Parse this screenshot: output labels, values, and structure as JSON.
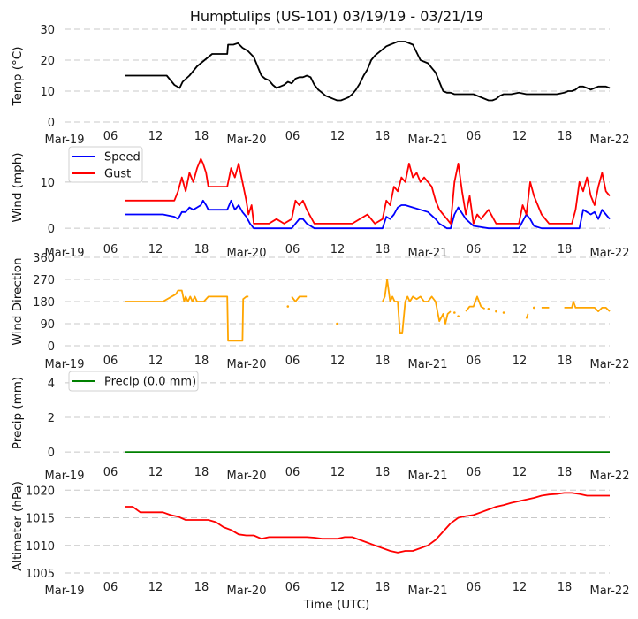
{
  "chart_data": [
    {
      "type": "line",
      "panel": "temp",
      "title": "Humptulips (US-101) 03/19/19 - 03/21/19",
      "xlabel": "",
      "ylabel": "Temp ($^\\circ$C)",
      "ylabel_display": "Temp (°C)",
      "ylim": [
        0,
        30
      ],
      "yticks": [
        0,
        10,
        20,
        30
      ],
      "ytick_labels": [
        "0",
        "10",
        "20",
        "30"
      ],
      "grid": true,
      "x_units": "hours since Mar-19 00:00 UTC",
      "xlim": [
        0,
        72
      ],
      "xticks": [
        0,
        6,
        12,
        18,
        24,
        30,
        36,
        42,
        48,
        54,
        60,
        66,
        72
      ],
      "xtick_labels": [
        "Mar-19",
        "06",
        "12",
        "18",
        "Mar-20",
        "06",
        "12",
        "18",
        "Mar-21",
        "06",
        "12",
        "18",
        "Mar-22"
      ],
      "series": [
        {
          "name": "Temp",
          "color": "#000000",
          "x": [
            8,
            13.5,
            14.5,
            15.2,
            15.6,
            16.5,
            17.5,
            18.5,
            19.5,
            21.5,
            21.6,
            22.3,
            22.9,
            23.5,
            24.2,
            25,
            25.5,
            26,
            26.5,
            27,
            27.5,
            28,
            28.5,
            29,
            29.5,
            30,
            30.5,
            31,
            31.5,
            32,
            32.5,
            33,
            33.5,
            34,
            34.5,
            35,
            35.5,
            36,
            36.5,
            37,
            37.5,
            38,
            38.5,
            39,
            39.5,
            40,
            40.5,
            41,
            41.5,
            42,
            42.5,
            43,
            43.5,
            44,
            45,
            46,
            47,
            48,
            48.5,
            49,
            49.5,
            50,
            50.5,
            51,
            51.5,
            52,
            53,
            54,
            55,
            56,
            56.5,
            57,
            57.5,
            58,
            59,
            60,
            61,
            62,
            63,
            64,
            65,
            66,
            66.5,
            67,
            67.5,
            68,
            68.5,
            69,
            69.5,
            70,
            70.5,
            71,
            71.5,
            72
          ],
          "y": [
            15,
            15,
            12,
            11,
            13,
            15,
            18,
            20,
            22,
            22,
            25,
            25,
            25.5,
            24,
            23,
            21,
            18,
            15,
            14,
            13.5,
            12,
            11,
            11.5,
            12,
            13,
            12.5,
            14,
            14.5,
            14.5,
            15,
            14.5,
            12,
            10.5,
            9.5,
            8.5,
            8,
            7.5,
            7,
            7,
            7.5,
            8,
            9,
            10.5,
            12.5,
            15,
            17,
            20,
            21.5,
            22.5,
            23.5,
            24.5,
            25,
            25.5,
            26,
            26,
            25,
            20,
            19,
            17.5,
            16,
            13,
            10,
            9.5,
            9.5,
            9,
            9,
            9,
            9,
            8,
            7,
            7,
            7.5,
            8.5,
            9,
            9,
            9.5,
            9,
            9,
            9,
            9,
            9,
            9.5,
            10,
            10,
            10.5,
            11.5,
            11.5,
            11,
            10.5,
            11,
            11.5,
            11.5,
            11.5,
            11
          ]
        }
      ]
    },
    {
      "type": "line",
      "panel": "wind",
      "ylabel": "Wind (mph)",
      "ylim": [
        -1.5,
        18
      ],
      "yticks": [
        0,
        10
      ],
      "ytick_labels": [
        "0",
        "10"
      ],
      "grid": true,
      "legend": [
        "Speed",
        "Gust"
      ],
      "legend_position": "top-left",
      "x_units": "hours since Mar-19 00:00 UTC",
      "xtick_labels": [
        "Mar-19",
        "06",
        "12",
        "18",
        "Mar-20",
        "06",
        "12",
        "18",
        "Mar-21",
        "06",
        "12",
        "18",
        "Mar-22"
      ],
      "series": [
        {
          "name": "Speed",
          "color": "#0000ff",
          "x": [
            8,
            13,
            14.5,
            15,
            15.5,
            16,
            16.5,
            17,
            17.5,
            18,
            18.3,
            18.7,
            19,
            21.5,
            22,
            22.5,
            23,
            23.5,
            24,
            24.5,
            25,
            26,
            28,
            30,
            30.5,
            31,
            31.5,
            32,
            33,
            36,
            38,
            42,
            42.5,
            43,
            43.5,
            44,
            44.5,
            45,
            46,
            47,
            48,
            49,
            49.5,
            50,
            50.5,
            51,
            51.5,
            52,
            53,
            54,
            56,
            58,
            60,
            60.5,
            61,
            61.5,
            62,
            63,
            66,
            67,
            67.5,
            68,
            68.5,
            69,
            69.5,
            70,
            70.5,
            71,
            71.5,
            72
          ],
          "y": [
            3,
            3,
            2.5,
            2,
            3.5,
            3.5,
            4.5,
            4,
            4.5,
            5,
            6,
            5,
            4,
            4,
            6,
            4,
            5,
            3.5,
            2.5,
            1,
            0,
            0,
            0,
            0,
            1,
            2,
            2,
            1,
            0,
            0,
            0,
            0,
            2.5,
            2,
            3,
            4.5,
            5,
            5,
            4.5,
            4,
            3.5,
            2,
            1,
            0.5,
            0,
            0,
            3,
            4.5,
            2,
            0.5,
            0,
            0,
            0,
            1.5,
            3,
            2,
            0.5,
            0,
            0,
            0,
            0,
            0,
            4,
            3.5,
            3,
            3.5,
            2,
            4,
            3,
            2
          ]
        },
        {
          "name": "Gust",
          "color": "#ff0000",
          "x": [
            8,
            14.5,
            15,
            15.5,
            16,
            16.5,
            17,
            17.5,
            18,
            18.3,
            18.7,
            19,
            21.5,
            22,
            22.5,
            23,
            23.5,
            24,
            24.3,
            24.7,
            25,
            26,
            27,
            28,
            29,
            30,
            30.5,
            31,
            31.5,
            32,
            33,
            36,
            38,
            40,
            41,
            42,
            42.5,
            43,
            43.5,
            44,
            44.5,
            45,
            45.5,
            46,
            46.5,
            47,
            47.5,
            48,
            48.5,
            49,
            49.5,
            50,
            50.5,
            51,
            51.5,
            52,
            52.5,
            53,
            53.5,
            54,
            54.5,
            55,
            56,
            57,
            58,
            59,
            60,
            60.5,
            61,
            61.5,
            62,
            63,
            64,
            66,
            67,
            67.5,
            68,
            68.5,
            69,
            69.5,
            70,
            70.5,
            71,
            71.5,
            72
          ],
          "y": [
            6,
            6,
            8,
            11,
            8,
            12,
            10,
            13,
            15,
            14,
            12,
            9,
            9,
            13,
            11,
            14,
            10,
            6,
            3,
            5,
            1,
            1,
            1,
            2,
            1,
            2,
            6,
            5,
            6,
            4,
            1,
            1,
            1,
            3,
            1,
            2,
            6,
            5,
            9,
            8,
            11,
            10,
            14,
            11,
            12,
            10,
            11,
            10,
            9,
            6,
            4,
            3,
            2,
            1,
            10,
            14,
            8,
            3,
            7,
            1,
            3,
            2,
            4,
            1,
            1,
            1,
            1,
            5,
            3,
            10,
            7,
            3,
            1,
            1,
            1,
            4,
            10,
            8,
            11,
            7,
            5,
            9,
            12,
            8,
            7
          ]
        }
      ]
    },
    {
      "type": "line",
      "panel": "direction",
      "ylabel": "Wind Direction",
      "ylim": [
        0,
        360
      ],
      "yticks": [
        0,
        90,
        180,
        270,
        360
      ],
      "ytick_labels": [
        "0",
        "90",
        "180",
        "270",
        "360"
      ],
      "grid": true,
      "x_units": "hours since Mar-19 00:00 UTC",
      "xtick_labels": [
        "Mar-19",
        "06",
        "12",
        "18",
        "Mar-20",
        "06",
        "12",
        "18",
        "Mar-21",
        "06",
        "12",
        "18",
        "Mar-22"
      ],
      "series": [
        {
          "name": "Direction",
          "color": "#ffa500",
          "segments": [
            {
              "x": [
                8,
                13,
                14.7,
                15,
                15.5,
                15.8,
                16,
                16.3,
                16.6,
                16.9,
                17.2,
                17.5,
                17.8,
                18,
                18.4,
                19,
                21.5,
                21.6,
                23.5,
                23.6,
                24,
                24.3
              ],
              "y": [
                180,
                180,
                210,
                225,
                225,
                180,
                200,
                180,
                200,
                180,
                200,
                180,
                180,
                180,
                180,
                200,
                200,
                20,
                20,
                190,
                200,
                200
              ]
            },
            {
              "x": [
                29.5
              ],
              "y": [
                160
              ]
            },
            {
              "x": [
                30,
                30.5,
                31,
                31.5,
                32
              ],
              "y": [
                200,
                180,
                200,
                200,
                200
              ]
            },
            {
              "x": [
                36
              ],
              "y": [
                90
              ]
            },
            {
              "x": [
                42,
                42.3,
                42.6,
                43,
                43.3,
                43.6,
                44,
                44.3,
                44.6,
                45,
                45.3,
                45.6,
                46,
                46.5,
                47,
                47.5,
                48,
                48.5,
                49,
                49.5,
                50,
                50.3,
                50.6,
                51
              ],
              "y": [
                180,
                200,
                270,
                180,
                200,
                180,
                180,
                50,
                50,
                180,
                200,
                180,
                200,
                190,
                200,
                180,
                180,
                200,
                180,
                100,
                130,
                90,
                130,
                140
              ]
            },
            {
              "x": [
                51.5
              ],
              "y": [
                135
              ]
            },
            {
              "x": [
                52
              ],
              "y": [
                120
              ]
            },
            {
              "x": [
                53,
                53.5,
                54,
                54.5,
                55,
                55.5
              ],
              "y": [
                140,
                160,
                160,
                200,
                160,
                150
              ]
            },
            {
              "x": [
                56
              ],
              "y": [
                150
              ]
            },
            {
              "x": [
                57
              ],
              "y": [
                140
              ]
            },
            {
              "x": [
                58
              ],
              "y": [
                135
              ]
            },
            {
              "x": [
                61,
                61.2
              ],
              "y": [
                110,
                130
              ]
            },
            {
              "x": [
                62
              ],
              "y": [
                155
              ]
            },
            {
              "x": [
                63,
                64
              ],
              "y": [
                155,
                155
              ]
            },
            {
              "x": [
                66,
                67,
                67.2,
                67.5,
                70,
                70.5,
                71,
                71.5,
                72
              ],
              "y": [
                155,
                155,
                180,
                155,
                155,
                140,
                155,
                155,
                140
              ]
            }
          ]
        }
      ]
    },
    {
      "type": "line",
      "panel": "precip",
      "ylabel": "Precip (mm)",
      "ylim": [
        -0.3,
        4.4
      ],
      "yticks": [
        0,
        2,
        4
      ],
      "ytick_labels": [
        "0",
        "2",
        "4"
      ],
      "grid": true,
      "legend": [
        "Precip (0.0 mm)"
      ],
      "legend_position": "top-left",
      "x_units": "hours since Mar-19 00:00 UTC",
      "xtick_labels": [
        "Mar-19",
        "06",
        "12",
        "18",
        "Mar-20",
        "06",
        "12",
        "18",
        "Mar-21",
        "06",
        "12",
        "18",
        "Mar-22"
      ],
      "series": [
        {
          "name": "Precip (0.0 mm)",
          "color": "#008000",
          "x": [
            8,
            72
          ],
          "y": [
            0,
            0
          ]
        }
      ]
    },
    {
      "type": "line",
      "panel": "altimeter",
      "ylabel": "Altimeter (hPa)",
      "xlabel": "Time (UTC)",
      "ylim": [
        1005,
        1021
      ],
      "yticks": [
        1005,
        1010,
        1015,
        1020
      ],
      "ytick_labels": [
        "1005",
        "1010",
        "1015",
        "1020"
      ],
      "grid": true,
      "x_units": "hours since Mar-19 00:00 UTC",
      "xtick_labels": [
        "Mar-19",
        "06",
        "12",
        "18",
        "Mar-20",
        "06",
        "12",
        "18",
        "Mar-21",
        "06",
        "12",
        "18",
        "Mar-22"
      ],
      "series": [
        {
          "name": "Altimeter",
          "color": "#ff0000",
          "x": [
            8,
            9,
            10,
            11,
            12,
            13,
            14,
            15,
            16,
            17,
            18,
            19,
            20,
            21,
            22,
            23,
            24,
            25,
            26,
            27,
            28,
            29,
            30,
            31,
            32,
            33,
            34,
            35,
            36,
            37,
            38,
            39,
            40,
            41,
            42,
            43,
            44,
            45,
            46,
            47,
            48,
            49,
            50,
            51,
            52,
            53,
            54,
            55,
            56,
            57,
            58,
            59,
            60,
            61,
            62,
            63,
            64,
            65,
            66,
            67,
            68,
            69,
            70,
            71,
            72
          ],
          "y": [
            1017,
            1017,
            1016,
            1016,
            1016,
            1016,
            1015.5,
            1015.2,
            1014.6,
            1014.6,
            1014.6,
            1014.6,
            1014.2,
            1013.3,
            1012.8,
            1012.0,
            1011.8,
            1011.8,
            1011.2,
            1011.5,
            1011.5,
            1011.5,
            1011.5,
            1011.5,
            1011.5,
            1011.4,
            1011.2,
            1011.2,
            1011.2,
            1011.5,
            1011.5,
            1011.0,
            1010.5,
            1010.0,
            1009.5,
            1009.0,
            1008.7,
            1009.0,
            1009.0,
            1009.5,
            1010.0,
            1011.0,
            1012.5,
            1014.0,
            1015.0,
            1015.3,
            1015.5,
            1016.0,
            1016.5,
            1017.0,
            1017.3,
            1017.7,
            1018.0,
            1018.3,
            1018.6,
            1019.0,
            1019.2,
            1019.3,
            1019.5,
            1019.5,
            1019.3,
            1019.0,
            1019.0,
            1019.0,
            1019.0
          ]
        }
      ]
    }
  ]
}
